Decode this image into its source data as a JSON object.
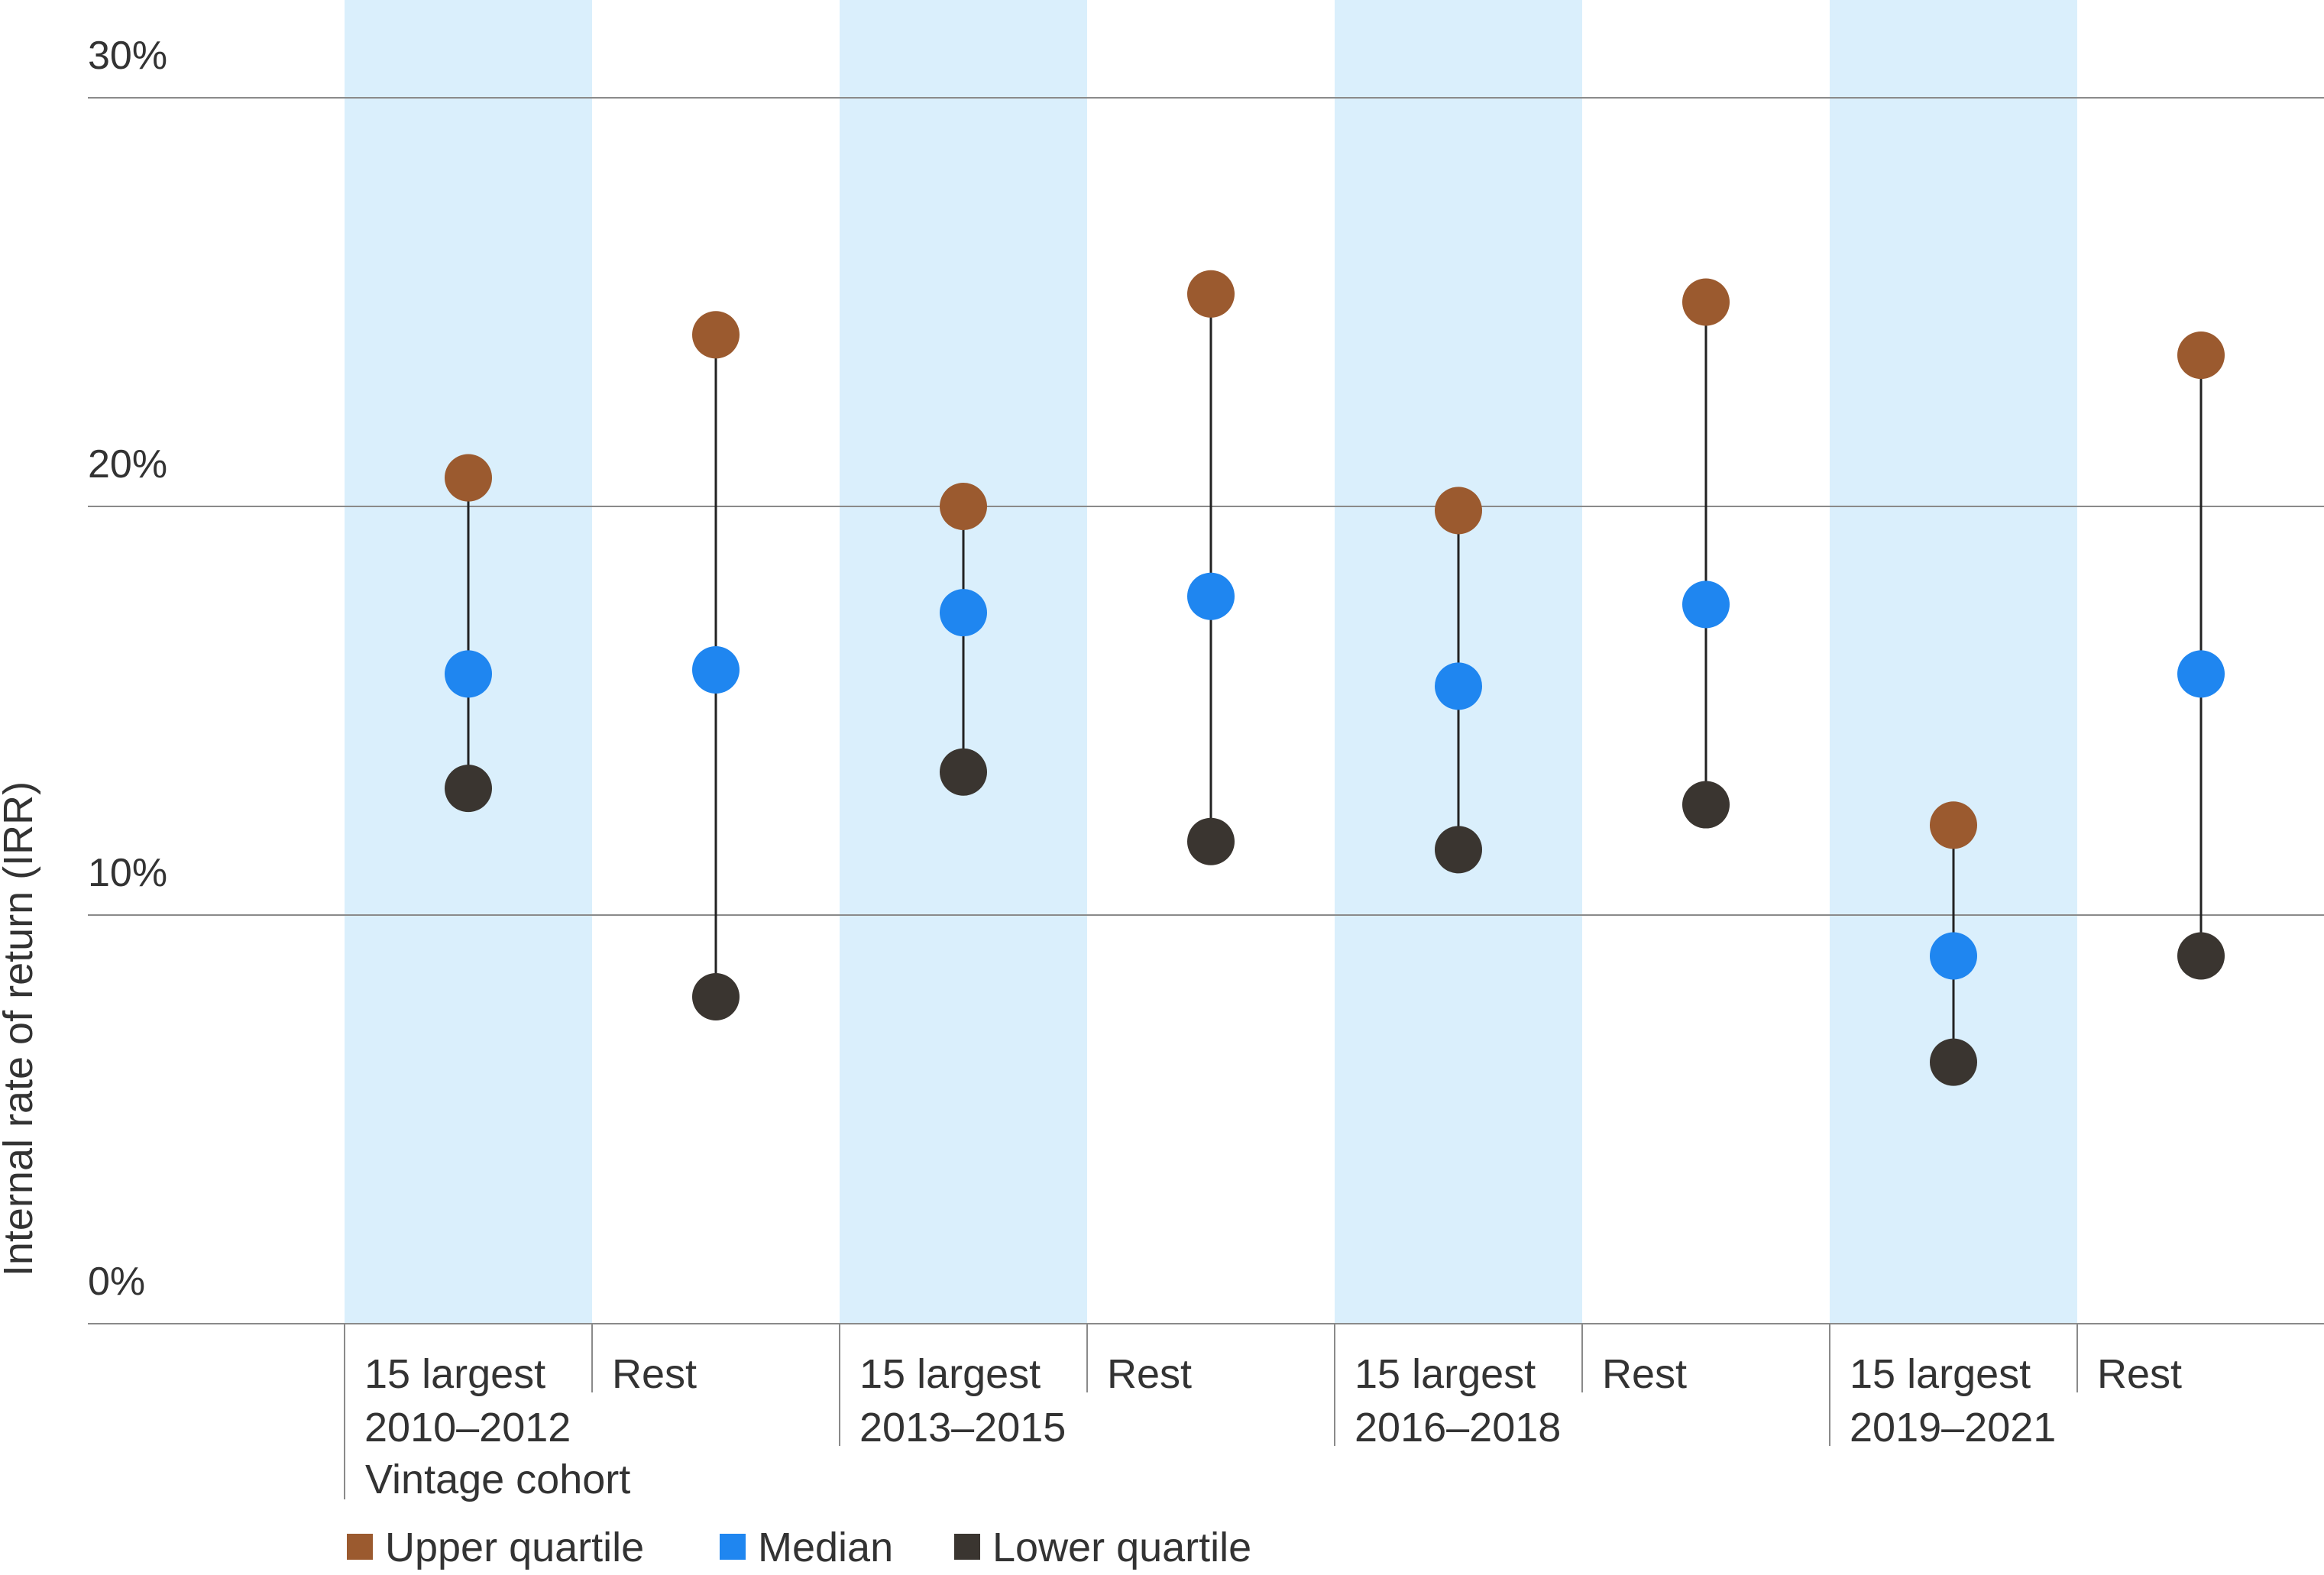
{
  "chart_data": {
    "type": "dot-range",
    "ylabel": "Internal rate of return (IRR)",
    "xlabel": "Vintage cohort",
    "ylim": [
      0,
      30
    ],
    "yticks": [
      {
        "value": 0,
        "label": "0%"
      },
      {
        "value": 10,
        "label": "10%"
      },
      {
        "value": 20,
        "label": "20%"
      },
      {
        "value": 30,
        "label": "30%"
      }
    ],
    "cohorts": [
      {
        "label": "2010–2012",
        "groups": [
          "15 largest",
          "Rest"
        ]
      },
      {
        "label": "2013–2015",
        "groups": [
          "15 largest",
          "Rest"
        ]
      },
      {
        "label": "2016–2018",
        "groups": [
          "15 largest",
          "Rest"
        ]
      },
      {
        "label": "2019–2021",
        "groups": [
          "15 largest",
          "Rest"
        ]
      }
    ],
    "categories": [
      "15 largest 2010–2012",
      "Rest 2010–2012",
      "15 largest 2013–2015",
      "Rest 2013–2015",
      "15 largest 2016–2018",
      "Rest 2016–2018",
      "15 largest 2019–2021",
      "Rest 2019–2021"
    ],
    "series": [
      {
        "name": "Upper quartile",
        "color": "#9b5a2f",
        "values": [
          20.7,
          24.2,
          20.0,
          25.2,
          19.9,
          25.0,
          12.2,
          23.7
        ]
      },
      {
        "name": "Median",
        "color": "#1f86f0",
        "values": [
          15.9,
          16.0,
          17.4,
          17.8,
          15.6,
          17.6,
          9.0,
          15.9
        ]
      },
      {
        "name": "Lower quartile",
        "color": "#3a3530",
        "values": [
          13.1,
          8.0,
          13.5,
          11.8,
          11.6,
          12.7,
          6.4,
          9.0
        ]
      }
    ],
    "highlight_color": "#daeffc",
    "grid": true,
    "legend_position": "bottom-left"
  }
}
